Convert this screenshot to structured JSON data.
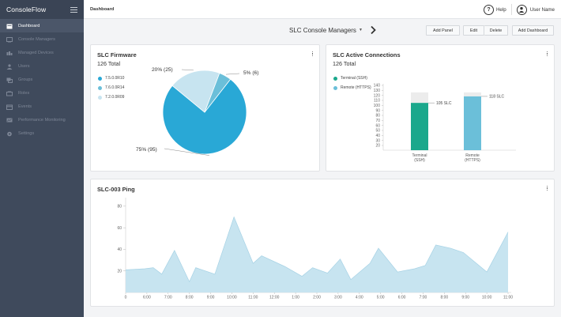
{
  "app": {
    "name": "ConsoleFlow"
  },
  "sidebar": {
    "items": [
      {
        "label": "Dashboard",
        "icon": "dashboard-icon",
        "active": true
      },
      {
        "label": "Console Managers",
        "icon": "console-manager-icon",
        "active": false
      },
      {
        "label": "Managed Devices",
        "icon": "managed-devices-icon",
        "active": false
      },
      {
        "label": "Users",
        "icon": "users-icon",
        "active": false
      },
      {
        "label": "Groups",
        "icon": "groups-icon",
        "active": false
      },
      {
        "label": "Roles",
        "icon": "roles-icon",
        "active": false
      },
      {
        "label": "Events",
        "icon": "events-icon",
        "active": false
      },
      {
        "label": "Performance Monitoring",
        "icon": "performance-icon",
        "active": false
      },
      {
        "label": "Settings",
        "icon": "settings-icon",
        "active": false
      }
    ]
  },
  "topbar": {
    "title": "Dashboard",
    "help": "Help",
    "user": "User Name"
  },
  "header": {
    "selector": "SLC Console Managers",
    "buttons": {
      "add_panel": "Add Panel",
      "edit": "Edit",
      "delete": "Delete",
      "add_dashboard": "Add Dashboard"
    }
  },
  "panels": {
    "firmware": {
      "title": "SLC Firmware",
      "subtitle": "126 Total"
    },
    "connections": {
      "title": "SLC Active Connections",
      "subtitle": "126 Total"
    },
    "ping": {
      "title": "SLC-003 Ping"
    }
  },
  "colors": {
    "primary": "#29a8d6",
    "light": "#c7e4f0",
    "mid": "#6bbfd9",
    "teal": "#1ba88c",
    "gray_cap": "#eeeeee",
    "sidebar": "#3f4a5c"
  },
  "chart_data": [
    {
      "type": "pie",
      "title": "SLC Firmware",
      "labels": [
        "7.5.0.0R10",
        "7.6.0.0R14",
        "7.2.0.0R09"
      ],
      "values": [
        95,
        6,
        25
      ],
      "data_labels": [
        "75% (95)",
        "5% (6)",
        "20% (25)"
      ],
      "colors": [
        "#29a8d6",
        "#6bbfd9",
        "#c7e4f0"
      ]
    },
    {
      "type": "bar",
      "title": "SLC Active Connections",
      "categories": [
        "Terminal\n(SSH)",
        "Remote\n(HTTPS)"
      ],
      "legend": [
        "Terminal (SSH)",
        "Remote (HTTPS)"
      ],
      "values": [
        105,
        118
      ],
      "data_labels": [
        "105 SLC",
        "118 SLC"
      ],
      "capacity": 126,
      "colors": [
        "#1ba88c",
        "#6bbfd9"
      ],
      "yticks": [
        20,
        30,
        40,
        50,
        60,
        70,
        80,
        90,
        100,
        110,
        120,
        130,
        140
      ],
      "ylim": [
        20,
        140
      ]
    },
    {
      "type": "area",
      "title": "SLC-003 Ping",
      "xticks": [
        "0",
        "6:00",
        "7:00",
        "8:00",
        "9:00",
        "10:00",
        "11:00",
        "12:00",
        "1:00",
        "2:00",
        "3:00",
        "4:00",
        "5:00",
        "6:00",
        "7:00",
        "8:00",
        "9:00",
        "10:00",
        "11:00"
      ],
      "x": [
        0,
        0.5,
        1,
        1.6,
        2.5,
        3.3,
        3.9,
        5.1,
        6.0,
        7.0,
        7.8,
        8.9,
        9.6,
        10.5,
        11.6,
        12.6,
        13.8,
        14.6,
        15.6,
        16.9,
        17.6,
        18.3,
        19.6,
        20.5,
        21.6,
        22.5,
        23.5,
        24.4,
        25.5,
        26.5,
        27.5,
        28.5
      ],
      "y": [
        21,
        22,
        23,
        17,
        39,
        10,
        23,
        17,
        70,
        27,
        34,
        24,
        15,
        23,
        18,
        31,
        12,
        27,
        41,
        19,
        22,
        25,
        44,
        41,
        37,
        19,
        56,
        56,
        56,
        56,
        56,
        56
      ],
      "yticks": [
        20,
        40,
        60,
        80
      ],
      "ylim": [
        0,
        85
      ],
      "color": "#c7e4f0",
      "line_color": "#a6d2e5"
    }
  ]
}
